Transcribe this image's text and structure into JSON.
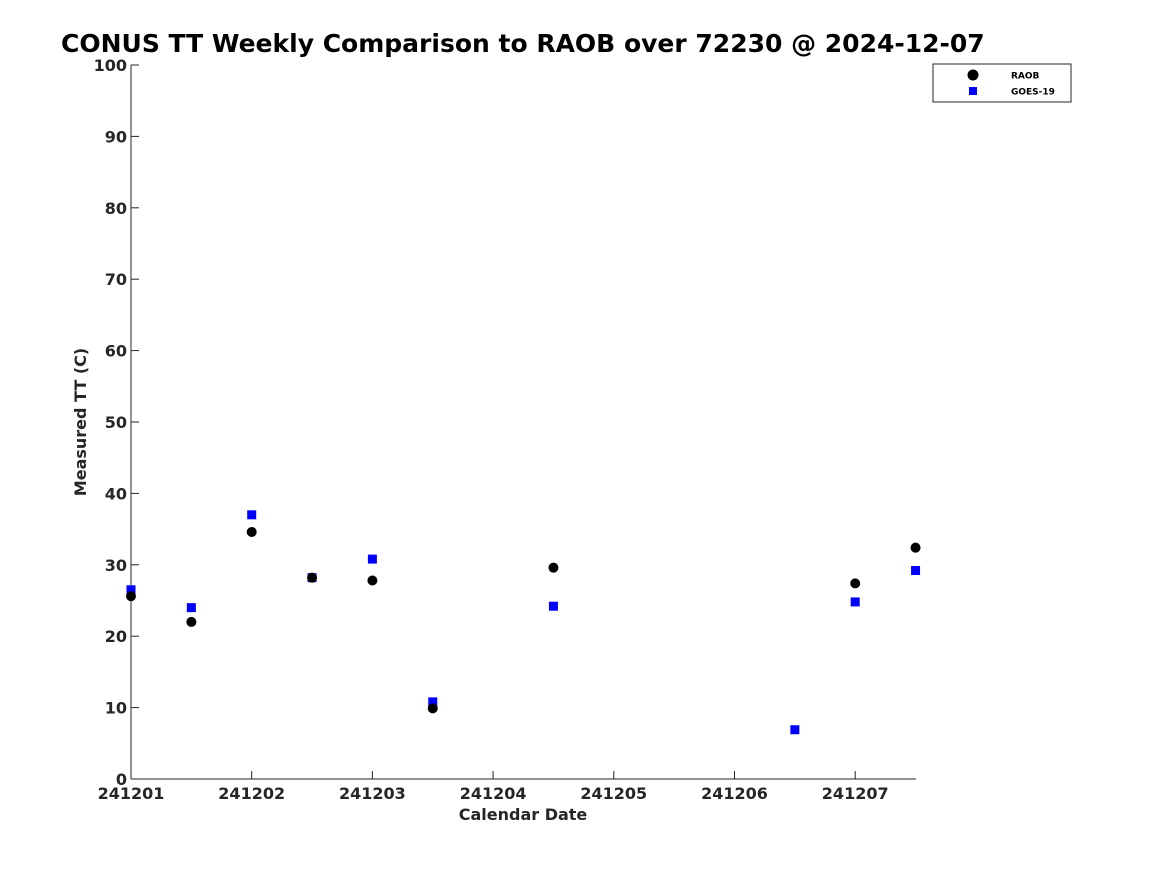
{
  "chart_data": {
    "type": "scatter",
    "title": "CONUS TT Weekly Comparison to RAOB over 72230 @ 2024-12-07",
    "xlabel": "Calendar Date",
    "ylabel": "Measured TT (C)",
    "xlim": [
      "241201",
      "241207 12Z"
    ],
    "ylim": [
      0,
      100
    ],
    "x_ticks": [
      "241201",
      "241202",
      "241203",
      "241204",
      "241205",
      "241206",
      "241207"
    ],
    "y_ticks": [
      "0",
      "10",
      "20",
      "30",
      "40",
      "50",
      "60",
      "70",
      "80",
      "90",
      "100"
    ],
    "grid": false,
    "legend_position": "top-right",
    "series": [
      {
        "name": "RAOB",
        "marker": "circle",
        "color": "#000000",
        "points": [
          {
            "x": "241201 00Z",
            "y": 25.6
          },
          {
            "x": "241201 12Z",
            "y": 22.0
          },
          {
            "x": "241202 00Z",
            "y": 34.6
          },
          {
            "x": "241202 12Z",
            "y": 28.2
          },
          {
            "x": "241203 00Z",
            "y": 27.8
          },
          {
            "x": "241203 12Z",
            "y": 9.9
          },
          {
            "x": "241204 12Z",
            "y": 29.6
          },
          {
            "x": "241207 00Z",
            "y": 27.4
          },
          {
            "x": "241207 12Z",
            "y": 32.4
          }
        ]
      },
      {
        "name": "GOES-19",
        "marker": "square",
        "color": "#0000ff",
        "points": [
          {
            "x": "241201 00Z",
            "y": 26.5
          },
          {
            "x": "241201 12Z",
            "y": 24.0
          },
          {
            "x": "241202 00Z",
            "y": 37.0
          },
          {
            "x": "241202 12Z",
            "y": 28.2
          },
          {
            "x": "241203 00Z",
            "y": 30.8
          },
          {
            "x": "241203 12Z",
            "y": 10.8
          },
          {
            "x": "241204 12Z",
            "y": 24.2
          },
          {
            "x": "241206 12Z",
            "y": 6.9
          },
          {
            "x": "241207 00Z",
            "y": 24.8
          },
          {
            "x": "241207 12Z",
            "y": 29.2
          }
        ]
      }
    ]
  }
}
